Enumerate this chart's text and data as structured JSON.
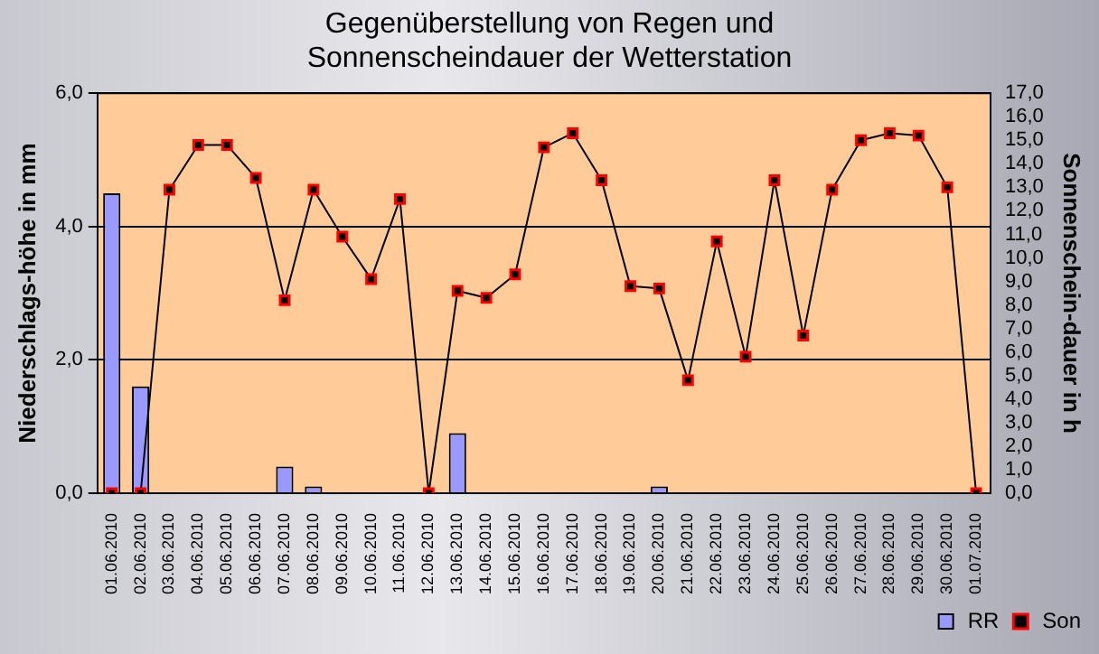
{
  "chart_data": {
    "type": "bar",
    "title": "Gegenüberstellung von Regen und Sonnenscheindauer der Wetterstation",
    "ylabel": "Niederschlags-höhe in mm",
    "y2label": "Sonnenschein-dauer in h",
    "categories": [
      "01.06.2010",
      "02.06.2010",
      "03.06.2010",
      "04.06.2010",
      "05.06.2010",
      "06.06.2010",
      "07.06.2010",
      "08.06.2010",
      "09.06.2010",
      "10.06.2010",
      "11.06.2010",
      "12.06.2010",
      "13.06.2010",
      "14.06.2010",
      "15.06.2010",
      "16.06.2010",
      "17.06.2010",
      "18.06.2010",
      "19.06.2010",
      "20.06.2010",
      "21.06.2010",
      "22.06.2010",
      "23.06.2010",
      "24.06.2010",
      "25.06.2010",
      "26.06.2010",
      "27.06.2010",
      "28.06.2010",
      "29.06.2010",
      "30.06.2010",
      "01.07.2010"
    ],
    "series": [
      {
        "name": "RR",
        "color": "#9999ff",
        "values": [
          4.5,
          1.6,
          null,
          null,
          null,
          null,
          0.4,
          0.1,
          null,
          null,
          null,
          null,
          0.9,
          null,
          null,
          null,
          null,
          null,
          null,
          0.1,
          null,
          null,
          null,
          null,
          null,
          null,
          null,
          null,
          null,
          null,
          null
        ]
      },
      {
        "name": "Son",
        "type": "line",
        "axis": "y2",
        "color": "#000000",
        "marker": "square",
        "values": [
          0,
          0,
          12.9,
          14.8,
          14.8,
          13.4,
          8.2,
          12.9,
          10.9,
          9.1,
          12.5,
          0,
          8.6,
          8.3,
          9.3,
          14.7,
          15.3,
          13.3,
          8.8,
          8.7,
          4.8,
          10.7,
          5.8,
          13.3,
          6.7,
          12.9,
          15.0,
          15.3,
          15.2,
          13.0,
          0
        ]
      }
    ],
    "ylim": [
      0,
      6
    ],
    "yticks": [
      {
        "value": 0,
        "label": "0,0"
      },
      {
        "value": 2,
        "label": "2,0"
      },
      {
        "value": 4,
        "label": "4,0"
      },
      {
        "value": 6,
        "label": "6,0"
      }
    ],
    "y2lim": [
      0,
      17
    ],
    "y2ticks": [
      {
        "value": 0,
        "label": "0,0"
      },
      {
        "value": 1,
        "label": "1,0"
      },
      {
        "value": 2,
        "label": "2,0"
      },
      {
        "value": 3,
        "label": "3,0"
      },
      {
        "value": 4,
        "label": "4,0"
      },
      {
        "value": 5,
        "label": "5,0"
      },
      {
        "value": 6,
        "label": "6,0"
      },
      {
        "value": 7,
        "label": "7,0"
      },
      {
        "value": 8,
        "label": "8,0"
      },
      {
        "value": 9,
        "label": "9,0"
      },
      {
        "value": 10,
        "label": "10,0"
      },
      {
        "value": 11,
        "label": "11,0"
      },
      {
        "value": 12,
        "label": "12,0"
      },
      {
        "value": 13,
        "label": "13,0"
      },
      {
        "value": 14,
        "label": "14,0"
      },
      {
        "value": 15,
        "label": "15,0"
      },
      {
        "value": 16,
        "label": "16,0"
      },
      {
        "value": 17,
        "label": "17,0"
      }
    ],
    "grid": "y",
    "legend": "bottom right"
  }
}
